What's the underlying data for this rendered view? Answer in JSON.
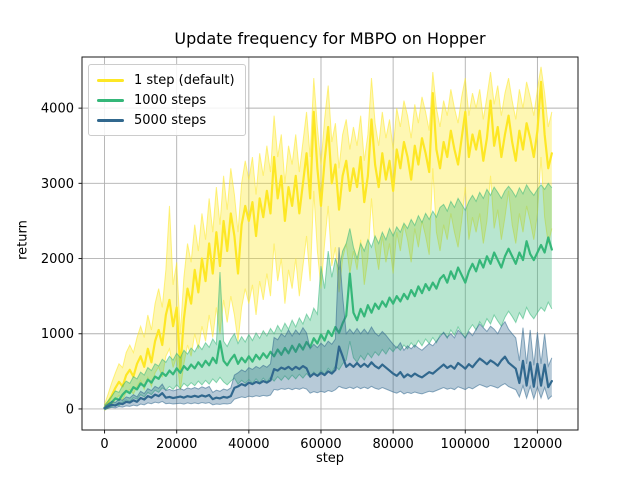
{
  "figure": {
    "title": "Update frequency for MBPO on Hopper",
    "xlabel": "step",
    "ylabel": "return"
  },
  "chart_data": {
    "type": "line",
    "title": "Update frequency for MBPO on Hopper",
    "xlabel": "step",
    "ylabel": "return",
    "grid": true,
    "legend_position": "upper left",
    "grid_color": "#b0b0b0",
    "spine_color": "#1a1a1a",
    "text_color": "#000000",
    "band_opacity": 0.35,
    "xlim": [
      -6250,
      131250
    ],
    "ylim": [
      -280,
      4680
    ],
    "xticks": [
      0,
      20000,
      40000,
      60000,
      80000,
      100000,
      120000
    ],
    "yticks": [
      0,
      1000,
      2000,
      3000,
      4000
    ],
    "x_start": 0,
    "x_step": 1000,
    "series": [
      {
        "name": "1 step (default)",
        "color": "#FDE725",
        "mean": [
          20,
          90,
          180,
          280,
          360,
          300,
          450,
          520,
          430,
          600,
          700,
          560,
          800,
          620,
          900,
          1050,
          850,
          1250,
          1450,
          1100,
          1350,
          530,
          1200,
          1600,
          1400,
          1850,
          1550,
          2000,
          1700,
          2200,
          1800,
          2350,
          1900,
          2500,
          2100,
          2600,
          2300,
          1800,
          2450,
          2700,
          2500,
          2750,
          2300,
          2800,
          2550,
          2900,
          2600,
          3350,
          2800,
          3100,
          2500,
          2950,
          2700,
          3100,
          2600,
          3000,
          3400,
          2800,
          3950,
          3200,
          2700,
          3300,
          3750,
          3000,
          3250,
          2650,
          3100,
          3300,
          2900,
          3200,
          2950,
          3350,
          2750,
          3100,
          3850,
          3250,
          2950,
          3400,
          3050,
          3300,
          2900,
          3450,
          3200,
          3550,
          3350,
          3050,
          3500,
          3250,
          3600,
          3400,
          3150,
          4200,
          3450,
          3200,
          3550,
          3350,
          3700,
          3450,
          3250,
          3600,
          3950,
          3350,
          3650,
          3450,
          3700,
          3300,
          3600,
          4100,
          3500,
          3750,
          3350,
          3650,
          3900,
          3550,
          3300,
          3700,
          3450,
          3800,
          3600,
          3350,
          3700,
          4350,
          3650,
          3200,
          3400
        ],
        "lo": [
          -20,
          20,
          60,
          120,
          180,
          120,
          220,
          260,
          200,
          300,
          380,
          260,
          420,
          300,
          480,
          560,
          420,
          700,
          800,
          550,
          700,
          250,
          600,
          850,
          700,
          1000,
          800,
          1100,
          900,
          1250,
          950,
          1350,
          1000,
          1450,
          1150,
          1500,
          1250,
          900,
          1350,
          1600,
          1400,
          1650,
          1250,
          1700,
          1450,
          1800,
          1500,
          2200,
          1700,
          2000,
          1400,
          1850,
          1600,
          2000,
          1500,
          1900,
          2300,
          1700,
          2900,
          2100,
          1600,
          2200,
          2700,
          1900,
          2150,
          1550,
          2000,
          2200,
          1800,
          2100,
          1850,
          2250,
          1650,
          2000,
          2800,
          2150,
          1850,
          2300,
          1950,
          2200,
          1800,
          2350,
          2100,
          2450,
          2250,
          1950,
          2400,
          2150,
          2500,
          2300,
          2050,
          3200,
          2350,
          2100,
          2450,
          2250,
          2600,
          2350,
          2150,
          2500,
          2950,
          2250,
          2550,
          2350,
          2600,
          2200,
          2500,
          3100,
          2400,
          2650,
          2250,
          2550,
          2900,
          2450,
          2200,
          2600,
          2350,
          2700,
          2500,
          2250,
          2600,
          3350,
          2550,
          2200,
          2400
        ],
        "hi": [
          60,
          200,
          350,
          480,
          600,
          550,
          750,
          850,
          750,
          950,
          1100,
          950,
          1250,
          1050,
          1400,
          1600,
          1350,
          1850,
          2700,
          1650,
          1950,
          1000,
          1750,
          2200,
          1950,
          2450,
          2100,
          2600,
          2250,
          2800,
          2350,
          2950,
          2450,
          3100,
          2650,
          3200,
          2850,
          2350,
          3000,
          3300,
          3050,
          3350,
          2850,
          3400,
          3100,
          3500,
          3150,
          3900,
          3350,
          3650,
          3000,
          3500,
          3250,
          3650,
          3150,
          3550,
          3950,
          3350,
          4400,
          3750,
          3250,
          3850,
          4300,
          3550,
          3800,
          3200,
          3650,
          3850,
          3450,
          3750,
          3500,
          3900,
          3300,
          3650,
          4400,
          3800,
          3500,
          3950,
          3600,
          3850,
          3450,
          4000,
          3750,
          4100,
          3900,
          3600,
          4050,
          3800,
          4150,
          3950,
          3700,
          4480,
          4000,
          3750,
          4100,
          3900,
          4250,
          4000,
          3800,
          4150,
          4400,
          3900,
          4200,
          4000,
          4250,
          3850,
          4150,
          4480,
          4050,
          4300,
          3900,
          4200,
          4400,
          4100,
          3850,
          4250,
          4000,
          4350,
          4150,
          3900,
          4250,
          4550,
          4200,
          3750,
          3950
        ]
      },
      {
        "name": "1000 steps",
        "color": "#35B779",
        "mean": [
          15,
          50,
          90,
          140,
          120,
          190,
          240,
          210,
          290,
          260,
          340,
          300,
          390,
          350,
          430,
          400,
          480,
          440,
          510,
          460,
          540,
          480,
          570,
          520,
          590,
          540,
          620,
          560,
          640,
          580,
          680,
          610,
          900,
          640,
          580,
          660,
          720,
          600,
          680,
          620,
          700,
          630,
          720,
          660,
          740,
          680,
          760,
          700,
          790,
          720,
          810,
          740,
          840,
          760,
          860,
          790,
          890,
          820,
          940,
          870,
          990,
          910,
          1040,
          970,
          1090,
          1010,
          1140,
          1240,
          1800,
          1280,
          1180,
          1330,
          1230,
          1380,
          1280,
          1400,
          1330,
          1430,
          1360,
          1480,
          1400,
          1500,
          1430,
          1530,
          1460,
          1580,
          1500,
          1630,
          1540,
          1660,
          1580,
          1680,
          1600,
          1730,
          1780,
          1680,
          1830,
          1730,
          1880,
          1780,
          1680,
          1830,
          1930,
          1830,
          1980,
          1880,
          2030,
          1930,
          2080,
          1980,
          1880,
          2030,
          2130,
          2030,
          1930,
          2080,
          1980,
          2230,
          2060,
          1980,
          2080,
          2180,
          2080,
          2280,
          2120
        ],
        "lo": [
          -15,
          10,
          30,
          60,
          40,
          90,
          120,
          100,
          150,
          130,
          190,
          160,
          220,
          190,
          250,
          220,
          280,
          250,
          300,
          260,
          320,
          270,
          340,
          300,
          350,
          310,
          370,
          320,
          380,
          330,
          400,
          350,
          420,
          360,
          320,
          370,
          410,
          330,
          380,
          340,
          390,
          340,
          400,
          350,
          410,
          360,
          420,
          370,
          430,
          380,
          440,
          390,
          450,
          400,
          460,
          410,
          470,
          420,
          490,
          440,
          510,
          460,
          540,
          490,
          570,
          520,
          600,
          650,
          900,
          680,
          620,
          710,
          650,
          740,
          680,
          760,
          710,
          790,
          730,
          810,
          760,
          830,
          780,
          850,
          800,
          880,
          820,
          910,
          840,
          930,
          870,
          950,
          880,
          980,
          1010,
          940,
          1050,
          980,
          1090,
          1010,
          940,
          1050,
          1120,
          1050,
          1160,
          1090,
          1200,
          1130,
          1250,
          1170,
          1100,
          1220,
          1300,
          1230,
          1150,
          1280,
          1200,
          1350,
          1260,
          1200,
          1280,
          1350,
          1300,
          1420,
          1330
        ],
        "hi": [
          50,
          110,
          170,
          240,
          220,
          310,
          370,
          340,
          430,
          400,
          490,
          450,
          550,
          510,
          600,
          570,
          660,
          620,
          700,
          650,
          740,
          680,
          780,
          730,
          810,
          760,
          850,
          790,
          880,
          820,
          930,
          860,
          1820,
          900,
          830,
          930,
          1000,
          870,
          960,
          890,
          990,
          910,
          1010,
          940,
          1040,
          970,
          1070,
          1000,
          1110,
          1030,
          1140,
          1060,
          1180,
          1090,
          1210,
          1130,
          1260,
          1180,
          1340,
          1260,
          1900,
          1600,
          2100,
          1750,
          2000,
          1850,
          2100,
          2200,
          2400,
          2150,
          2000,
          2200,
          2100,
          2250,
          2150,
          2300,
          2200,
          2350,
          2250,
          2400,
          2300,
          2420,
          2350,
          2470,
          2400,
          2520,
          2440,
          2570,
          2480,
          2600,
          2520,
          2630,
          2550,
          2680,
          2720,
          2630,
          2760,
          2680,
          2800,
          2720,
          2640,
          2760,
          2840,
          2760,
          2880,
          2800,
          2920,
          2840,
          2950,
          2880,
          2800,
          2900,
          2960,
          2900,
          2820,
          2940,
          2860,
          2980,
          2900,
          2840,
          2920,
          2980,
          2920,
          3000,
          2940
        ]
      },
      {
        "name": "5000 steps",
        "color": "#31688E",
        "mean": [
          10,
          35,
          55,
          45,
          75,
          65,
          95,
          85,
          115,
          95,
          145,
          125,
          170,
          150,
          190,
          170,
          210,
          150,
          160,
          145,
          155,
          165,
          150,
          170,
          160,
          175,
          160,
          180,
          165,
          185,
          130,
          150,
          140,
          160,
          150,
          170,
          280,
          300,
          330,
          310,
          350,
          330,
          360,
          340,
          370,
          350,
          380,
          530,
          510,
          550,
          530,
          560,
          520,
          560,
          530,
          570,
          540,
          430,
          470,
          440,
          480,
          450,
          500,
          470,
          520,
          830,
          700,
          560,
          600,
          560,
          610,
          560,
          600,
          560,
          620,
          570,
          540,
          590,
          550,
          510,
          470,
          440,
          490,
          420,
          460,
          430,
          470,
          440,
          420,
          455,
          490,
          470,
          510,
          550,
          590,
          545,
          575,
          535,
          610,
          575,
          535,
          595,
          555,
          615,
          670,
          635,
          595,
          645,
          615,
          575,
          645,
          695,
          615,
          575,
          535,
          345,
          640,
          310,
          620,
          295,
          600,
          310,
          590,
          290,
          370
        ],
        "lo": [
          -10,
          10,
          20,
          15,
          30,
          25,
          40,
          35,
          50,
          40,
          65,
          55,
          80,
          70,
          90,
          80,
          100,
          70,
          75,
          65,
          70,
          75,
          65,
          80,
          70,
          80,
          70,
          85,
          75,
          85,
          55,
          65,
          60,
          70,
          65,
          75,
          130,
          145,
          160,
          150,
          170,
          160,
          175,
          165,
          180,
          170,
          185,
          260,
          250,
          270,
          260,
          275,
          255,
          275,
          260,
          280,
          265,
          210,
          230,
          215,
          235,
          220,
          245,
          230,
          255,
          300,
          280,
          270,
          290,
          270,
          295,
          270,
          290,
          270,
          300,
          275,
          260,
          285,
          265,
          245,
          225,
          210,
          235,
          200,
          220,
          205,
          225,
          210,
          200,
          218,
          235,
          225,
          245,
          265,
          285,
          262,
          277,
          257,
          295,
          277,
          257,
          287,
          267,
          297,
          325,
          307,
          287,
          312,
          297,
          277,
          312,
          337,
          297,
          277,
          257,
          160,
          310,
          145,
          300,
          135,
          290,
          145,
          285,
          130,
          175
        ],
        "hi": [
          35,
          70,
          100,
          85,
          130,
          115,
          160,
          145,
          190,
          160,
          235,
          205,
          270,
          245,
          300,
          275,
          330,
          245,
          260,
          240,
          255,
          270,
          250,
          280,
          265,
          285,
          265,
          295,
          275,
          300,
          220,
          250,
          235,
          265,
          250,
          280,
          450,
          480,
          520,
          495,
          550,
          525,
          565,
          540,
          580,
          555,
          600,
          950,
          920,
          1000,
          960,
          1050,
          970,
          1050,
          990,
          1080,
          1010,
          800,
          860,
          815,
          875,
          830,
          900,
          860,
          930,
          2150,
          1500,
          1000,
          1060,
          1000,
          1070,
          1000,
          1060,
          1000,
          1090,
          1010,
          970,
          1030,
          980,
          920,
          860,
          810,
          880,
          780,
          840,
          800,
          850,
          810,
          780,
          825,
          870,
          840,
          900,
          960,
          1020,
          955,
          1000,
          945,
          1050,
          1000,
          945,
          1030,
          975,
          1060,
          1130,
          1080,
          1030,
          1100,
          1060,
          1000,
          1100,
          1160,
          1060,
          1000,
          945,
          640,
          1080,
          600,
          1050,
          580,
          1020,
          600,
          1000,
          570,
          680
        ]
      }
    ]
  }
}
